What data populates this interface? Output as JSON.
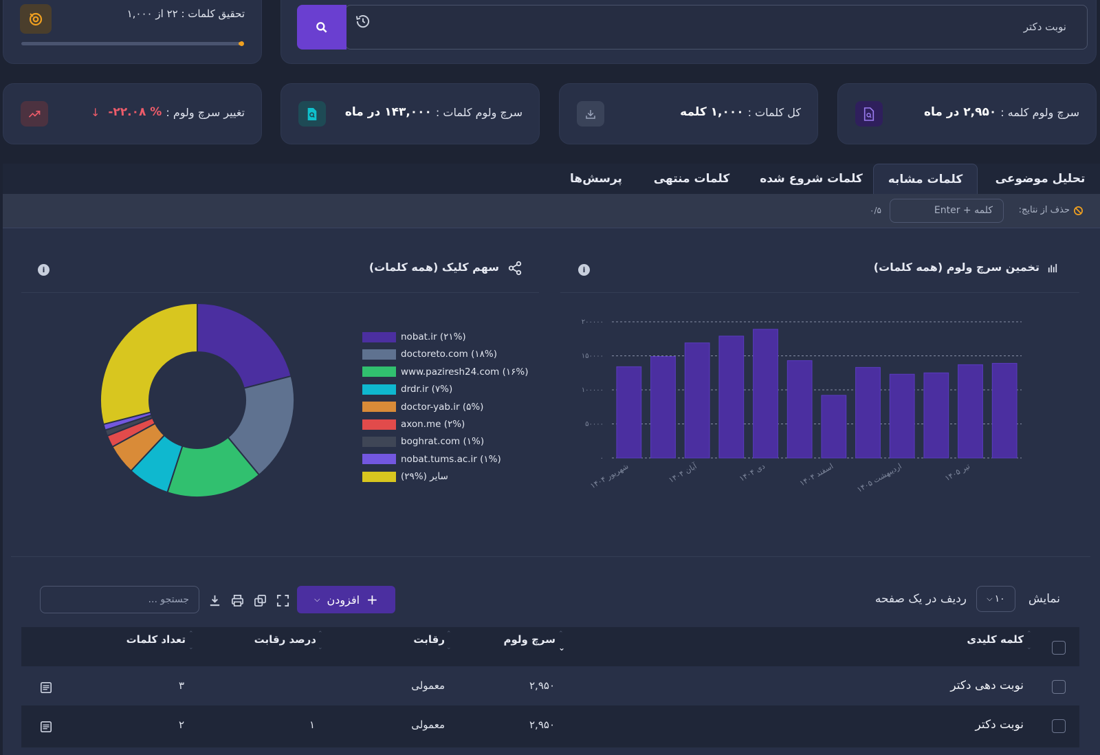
{
  "progress_card": {
    "label": "تحقیق کلمات : ۲۲ از ۱,۰۰۰",
    "progress": 0.02
  },
  "search": {
    "value": "نوبت دکتر"
  },
  "stats": [
    {
      "label": "سرچ ولوم کلمه :",
      "value": "۲,۹۵۰ در ماه"
    },
    {
      "label": "کل کلمات :",
      "value": "۱,۰۰۰ کلمه"
    },
    {
      "label": "سرچ ولوم کلمات :",
      "value": "۱۴۳,۰۰۰ در ماه"
    },
    {
      "label": "تغییر سرچ ولوم :",
      "value": "-۲۲.۰۸ %"
    }
  ],
  "tabs": [
    "تحلیل موضوعی",
    "کلمات مشابه",
    "کلمات شروع شده",
    "کلمات منتهی",
    "پرسش‌ها"
  ],
  "active_tab": 1,
  "filter": {
    "label": "حذف از نتایج:",
    "placeholder": "کلمه + Enter",
    "count": "۰/۵"
  },
  "charts": {
    "bar_title": "تخمین سرچ ولوم (همه کلمات)",
    "pie_title": "سهم کلیک (همه کلمات)"
  },
  "chart_data": [
    {
      "type": "bar",
      "title": "تخمین سرچ ولوم (همه کلمات)",
      "categories": [
        "شهریور ۱۴۰۴",
        "",
        "آبان ۱۴۰۴",
        "",
        "دی ۱۴۰۴",
        "",
        "اسفند ۱۴۰۴",
        "",
        "اردیبهشت ۱۴۰۵",
        "",
        "تیر ۱۴۰۵",
        ""
      ],
      "values": [
        134000,
        149000,
        169000,
        179000,
        189000,
        143000,
        92000,
        133000,
        123000,
        125000,
        137000,
        139000
      ],
      "yticks": [
        "۰",
        "۵۰۰۰۰",
        "۱۰۰۰۰۰",
        "۱۵۰۰۰۰",
        "۲۰۰۰۰۰"
      ],
      "ylim": [
        0,
        200000
      ],
      "grid": true,
      "color": "#4b2fa0"
    },
    {
      "type": "pie",
      "title": "سهم کلیک (همه کلمات)",
      "legend_position": "right",
      "slices": [
        {
          "label": "nobat.ir (۲۱%)",
          "value": 21,
          "color": "#4b2fa0"
        },
        {
          "label": "doctoreto.com (۱۸%)",
          "value": 18,
          "color": "#5f7290"
        },
        {
          "label": "www.paziresh24.com (۱۶%)",
          "value": 16,
          "color": "#31c06f"
        },
        {
          "label": "drdr.ir (۷%)",
          "value": 7,
          "color": "#0fb8cf"
        },
        {
          "label": "doctor-yab.ir (۵%)",
          "value": 5,
          "color": "#d98b38"
        },
        {
          "label": "axon.me (۲%)",
          "value": 2,
          "color": "#e24b4b"
        },
        {
          "label": "boghrat.com (۱%)",
          "value": 1,
          "color": "#3f4656"
        },
        {
          "label": "nobat.tums.ac.ir (۱%)",
          "value": 1,
          "color": "#7357e0"
        },
        {
          "label": "سایر (%۲۹)",
          "value": 29,
          "color": "#d8c61f"
        }
      ]
    }
  ],
  "table_controls": {
    "show": "نمایش",
    "page_size": "۱۰",
    "per_page": "ردیف در یک صفحه",
    "add": "افزودن",
    "search_placeholder": "جستجو ..."
  },
  "table": {
    "headers": [
      "کلمه کلیدی",
      "سرچ ولوم",
      "رقابت",
      "درصد رقابت",
      "تعداد کلمات"
    ],
    "rows": [
      {
        "keyword": "نوبت دهی دکتر",
        "volume": "۲,۹۵۰",
        "competition": "معمولی",
        "percent": "",
        "words": "۳"
      },
      {
        "keyword": "نوبت دکتر",
        "volume": "۲,۹۵۰",
        "competition": "معمولی",
        "percent": "۱",
        "words": "۲"
      }
    ]
  },
  "colors": {
    "accent": "#6a3fd0",
    "bg": "#1d2333",
    "card": "#283047",
    "danger": "#ee5c6a"
  }
}
